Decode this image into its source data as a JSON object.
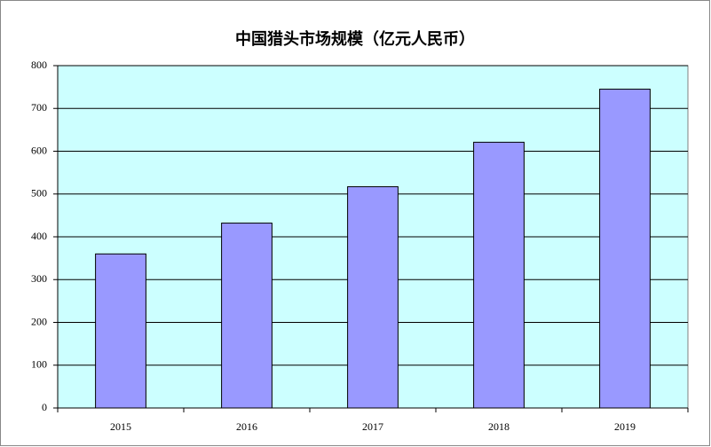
{
  "chart_data": {
    "type": "bar",
    "title": "中国猎头市场规模（亿元人民币）",
    "categories": [
      "2015",
      "2016",
      "2017",
      "2018",
      "2019"
    ],
    "values": [
      360,
      432,
      517,
      621,
      745
    ],
    "color": "#9999ff",
    "ylim": [
      0,
      800
    ],
    "yticks": [
      0,
      100,
      200,
      300,
      400,
      500,
      600,
      700,
      800
    ],
    "grid": true
  }
}
